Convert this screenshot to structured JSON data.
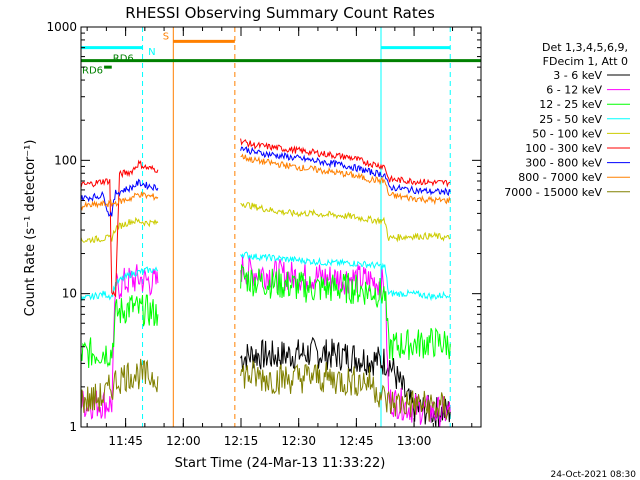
{
  "chart_data": {
    "type": "line",
    "title": "RHESSI Observing Summary Count Rates",
    "xlabel": "Start Time (24-Mar-13 11:33:22)",
    "ylabel": "Count Rate (s⁻¹ detector⁻¹)",
    "y_scale": "log",
    "ylim": [
      1,
      1000
    ],
    "xlim_minutes_after_start": [
      0,
      104
    ],
    "grid": false,
    "legend_position": "right",
    "legend_header": [
      "Det 1,3,4,5,6,9,",
      "FDecim 1, Att 0"
    ],
    "footer_date": "24-Oct-2021 08:30",
    "x_ticks": [
      {
        "label": "11:45",
        "minute": 11.6
      },
      {
        "label": "12:00",
        "minute": 26.6
      },
      {
        "label": "12:15",
        "minute": 41.6
      },
      {
        "label": "12:30",
        "minute": 56.6
      },
      {
        "label": "12:45",
        "minute": 71.6
      },
      {
        "label": "13:00",
        "minute": 86.6
      }
    ],
    "y_ticks": [
      {
        "label": "1",
        "value": 1
      },
      {
        "label": "10",
        "value": 10
      },
      {
        "label": "100",
        "value": 100
      },
      {
        "label": "1000",
        "value": 1000
      }
    ],
    "gap_minutes": [
      24.0,
      40.0
    ],
    "series": [
      {
        "name": "3 - 6 keV",
        "color": "#000000",
        "segments": [
          {
            "x": [
              41.5,
              45,
              50,
              55,
              60,
              65,
              70,
              75,
              80,
              86,
              92,
              96
            ],
            "y": [
              3.3,
              3.5,
              3.4,
              3.5,
              3.6,
              3.5,
              3.4,
              3.2,
              3.1,
              1.4,
              1.3,
              1.3
            ]
          }
        ]
      },
      {
        "name": "6 - 12 keV",
        "color": "#ff00ff",
        "segments": [
          {
            "x": [
              0,
              3,
              6,
              8,
              9,
              11,
              13,
              15,
              17,
              20
            ],
            "y": [
              1.5,
              1.5,
              1.5,
              1.5,
              11,
              12,
              12.5,
              13,
              12.5,
              12
            ]
          },
          {
            "x": [
              41.5,
              45,
              50,
              55,
              60,
              65,
              70,
              75,
              79,
              80,
              86,
              92,
              96
            ],
            "y": [
              15.5,
              14.5,
              14,
              13.5,
              13.5,
              13,
              13,
              12.5,
              12,
              1.6,
              1.4,
              1.3,
              1.3
            ]
          }
        ]
      },
      {
        "name": "12 - 25 keV",
        "color": "#00ff00",
        "segments": [
          {
            "x": [
              0,
              3,
              6,
              8,
              9,
              11,
              13,
              15,
              17,
              20
            ],
            "y": [
              3.5,
              3.6,
              3.7,
              3.6,
              7,
              7.5,
              8,
              7.5,
              7.5,
              7
            ]
          },
          {
            "x": [
              41.5,
              45,
              50,
              55,
              60,
              65,
              70,
              75,
              79,
              80,
              86,
              92,
              96
            ],
            "y": [
              13.5,
              12.5,
              12,
              11.5,
              11,
              11,
              11,
              10.5,
              10,
              4.0,
              4.2,
              4.3,
              4.2
            ]
          }
        ]
      },
      {
        "name": "25 - 50 keV",
        "color": "#00ffff",
        "segments": [
          {
            "x": [
              0,
              3,
              6,
              8,
              9,
              11,
              13,
              15,
              17,
              20
            ],
            "y": [
              9,
              9.5,
              10,
              9.5,
              12,
              13,
              14,
              14.5,
              15,
              15
            ]
          },
          {
            "x": [
              41.5,
              45,
              50,
              55,
              60,
              65,
              70,
              75,
              79,
              80,
              86,
              92,
              96
            ],
            "y": [
              20,
              19,
              18.5,
              18,
              17.5,
              17,
              17,
              16.5,
              16,
              10,
              10,
              9.5,
              10
            ]
          }
        ]
      },
      {
        "name": "50 - 100 keV",
        "color": "#cccc00",
        "segments": [
          {
            "x": [
              0,
              3,
              6,
              8,
              9,
              11,
              13,
              15,
              17,
              20
            ],
            "y": [
              25,
              25.5,
              26,
              26,
              31,
              33,
              35,
              35,
              34,
              34
            ]
          },
          {
            "x": [
              41.5,
              45,
              50,
              55,
              60,
              65,
              70,
              75,
              79,
              80,
              86,
              92,
              96
            ],
            "y": [
              48,
              45,
              42,
              40,
              40,
              39,
              38,
              36,
              35,
              26,
              27,
              27,
              26
            ]
          }
        ]
      },
      {
        "name": "100 - 300 keV",
        "color": "#ff0000",
        "segments": [
          {
            "x": [
              0,
              3,
              6,
              7.5,
              8,
              9,
              10,
              11,
              13,
              15,
              17,
              20
            ],
            "y": [
              65,
              67,
              70,
              70,
              10,
              10,
              78,
              80,
              82,
              95,
              88,
              85
            ]
          },
          {
            "x": [
              41.5,
              45,
              50,
              55,
              60,
              65,
              70,
              75,
              79,
              80,
              86,
              92,
              96
            ],
            "y": [
              140,
              130,
              125,
              120,
              115,
              110,
              105,
              95,
              90,
              72,
              70,
              68,
              68
            ]
          }
        ]
      },
      {
        "name": "300 - 800 keV",
        "color": "#0000ff",
        "segments": [
          {
            "x": [
              0,
              3,
              6,
              7,
              8,
              9,
              10,
              11,
              13,
              15,
              17,
              20
            ],
            "y": [
              52,
              53,
              55,
              40,
              40,
              57,
              58,
              60,
              62,
              68,
              65,
              62
            ]
          },
          {
            "x": [
              41.5,
              45,
              50,
              55,
              60,
              65,
              70,
              75,
              79,
              80,
              86,
              92,
              96
            ],
            "y": [
              125,
              115,
              110,
              105,
              100,
              95,
              90,
              82,
              78,
              63,
              60,
              58,
              58
            ]
          }
        ]
      },
      {
        "name": "800 - 7000 keV",
        "color": "#ff8000",
        "segments": [
          {
            "x": [
              0,
              3,
              6,
              8,
              9,
              11,
              13,
              15,
              17,
              20
            ],
            "y": [
              45,
              46,
              47,
              47,
              48,
              50,
              52,
              56,
              54,
              53
            ]
          },
          {
            "x": [
              41.5,
              45,
              50,
              55,
              60,
              65,
              70,
              75,
              79,
              80,
              86,
              92,
              96
            ],
            "y": [
              108,
              100,
              95,
              90,
              86,
              82,
              78,
              72,
              70,
              55,
              52,
              50,
              50
            ]
          }
        ]
      },
      {
        "name": "7000 - 15000 keV",
        "color": "#808000",
        "segments": [
          {
            "x": [
              0,
              3,
              6,
              8,
              9,
              11,
              13,
              15,
              17,
              20
            ],
            "y": [
              1.6,
              1.6,
              1.7,
              2.0,
              2.2,
              2.4,
              2.5,
              2.5,
              2.4,
              2.4
            ]
          },
          {
            "x": [
              41.5,
              45,
              50,
              55,
              60,
              65,
              70,
              75,
              80,
              86,
              92,
              96
            ],
            "y": [
              2.5,
              2.4,
              2.3,
              2.3,
              2.4,
              2.3,
              2.2,
              2.2,
              1.5,
              1.5,
              1.4,
              1.4
            ]
          }
        ]
      }
    ],
    "state_bars": [
      {
        "label": "",
        "color": "#00ffff",
        "value": 700,
        "from_minute": 0,
        "to_minute": 16
      },
      {
        "label": "",
        "color": "#00ffff",
        "value": 700,
        "from_minute": 78,
        "to_minute": 96
      },
      {
        "label": "S",
        "color": "#ff8000",
        "value": 780,
        "from_minute": 24,
        "to_minute": 40
      },
      {
        "label": "RD6",
        "color": "#008000",
        "value": 560,
        "from_minute": 0,
        "to_minute": 104
      },
      {
        "label": "RD6",
        "color": "#008000",
        "value": 500,
        "from_minute": 6,
        "to_minute": 8
      }
    ],
    "state_labels": [
      {
        "text": "N",
        "color": "#00ffff",
        "minute": 17.2,
        "value": 660
      },
      {
        "text": "S",
        "color": "#ff8000",
        "minute": 21,
        "value": 860
      },
      {
        "text": "RD6",
        "color": "#008000",
        "minute": 8,
        "value": 590
      },
      {
        "text": "RD6",
        "color": "#008000",
        "minute": 0,
        "value": 480
      }
    ],
    "vlines": [
      {
        "minute": 0,
        "color": "#00ffff",
        "style": "solid"
      },
      {
        "minute": 16,
        "color": "#00ffff",
        "style": "dashed"
      },
      {
        "minute": 24,
        "color": "#ff8000",
        "style": "solid"
      },
      {
        "minute": 40,
        "color": "#ff8000",
        "style": "dashed"
      },
      {
        "minute": 78,
        "color": "#00ffff",
        "style": "solid"
      },
      {
        "minute": 96,
        "color": "#00ffff",
        "style": "dashed"
      }
    ]
  }
}
